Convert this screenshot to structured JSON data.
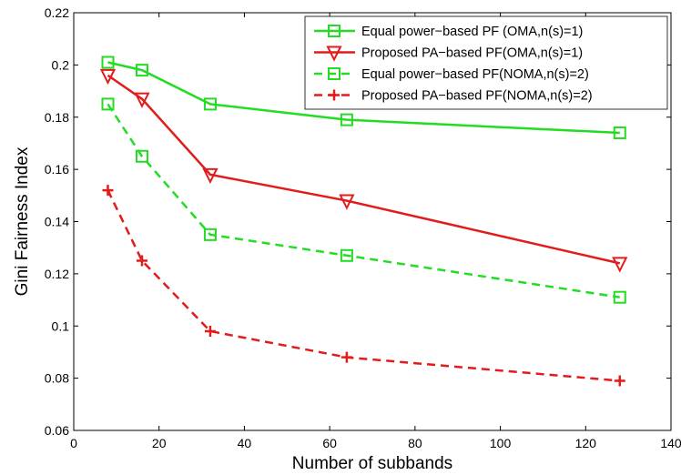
{
  "chart_data": {
    "type": "line",
    "title": "",
    "xlabel": "Number of subbands",
    "ylabel": "Gini Fairness Index",
    "xlim": [
      0,
      140
    ],
    "ylim": [
      0.06,
      0.22
    ],
    "xticks": [
      "0",
      "20",
      "40",
      "60",
      "80",
      "100",
      "120",
      "140"
    ],
    "yticks": [
      "0.06",
      "0.08",
      "0.1",
      "0.12",
      "0.14",
      "0.16",
      "0.18",
      "0.2",
      "0.22"
    ],
    "grid": false,
    "legend_position": "top-right",
    "x": [
      8,
      16,
      32,
      64,
      128
    ],
    "series": [
      {
        "name": "Equal power−based PF (OMA,n(s)=1)",
        "values": [
          0.201,
          0.198,
          0.185,
          0.179,
          0.174
        ],
        "color": "#22dd22",
        "dash": "solid",
        "marker": "square"
      },
      {
        "name": "Proposed PA−based PF(OMA,n(s)=1)",
        "values": [
          0.196,
          0.187,
          0.158,
          0.148,
          0.124
        ],
        "color": "#e21b1b",
        "dash": "solid",
        "marker": "triangle-down"
      },
      {
        "name": "Equal power−based PF(NOMA,n(s)=2)",
        "values": [
          0.185,
          0.165,
          0.135,
          0.127,
          0.111
        ],
        "color": "#22dd22",
        "dash": "dashed",
        "marker": "square"
      },
      {
        "name": "Proposed PA−based PF(NOMA,n(s)=2)",
        "values": [
          0.152,
          0.125,
          0.098,
          0.088,
          0.079
        ],
        "color": "#e21b1b",
        "dash": "dashed",
        "marker": "plus"
      }
    ]
  }
}
